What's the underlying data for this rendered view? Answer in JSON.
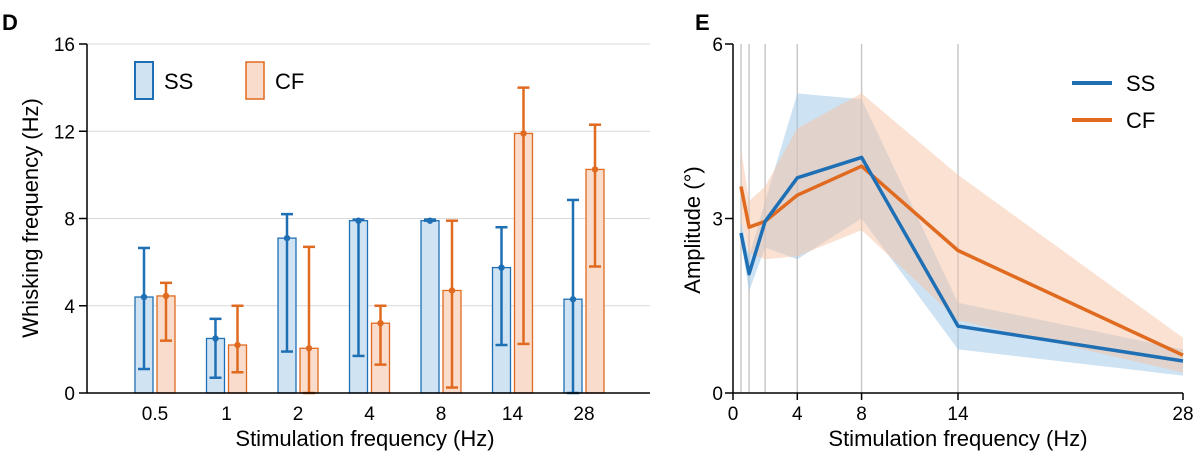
{
  "panels": {
    "d_letter": "D",
    "e_letter": "E"
  },
  "chart_data": [
    {
      "type": "bar",
      "panel": "D",
      "xlabel": "Stimulation frequency (Hz)",
      "ylabel": "Whisking frequency (Hz)",
      "categories": [
        "0.5",
        "1",
        "2",
        "4",
        "8",
        "14",
        "28"
      ],
      "ylim": [
        0,
        16
      ],
      "yticks": [
        0,
        4,
        8,
        12,
        16
      ],
      "grid": "horizontal",
      "legend": "top-left",
      "series": [
        {
          "name": "SS",
          "color": "#1f6fb5",
          "fill": "#cfe3f3",
          "values": [
            4.4,
            2.5,
            7.1,
            7.9,
            7.9,
            5.75,
            4.3
          ],
          "err_low": [
            1.1,
            0.7,
            1.9,
            1.7,
            7.9,
            2.2,
            0.0
          ],
          "err_high": [
            6.65,
            3.4,
            8.2,
            7.95,
            7.95,
            7.6,
            8.85
          ]
        },
        {
          "name": "CF",
          "color": "#e06a1f",
          "fill": "#f9dccb",
          "values": [
            4.45,
            2.2,
            2.05,
            3.2,
            4.7,
            11.9,
            10.25
          ],
          "err_low": [
            2.4,
            0.95,
            0.0,
            1.3,
            0.25,
            2.25,
            5.8
          ],
          "err_high": [
            5.05,
            4.0,
            6.7,
            4.0,
            7.9,
            14.0,
            12.3
          ]
        }
      ]
    },
    {
      "type": "line",
      "panel": "E",
      "xlabel": "Stimulation frequency (Hz)",
      "ylabel": "Amplitude (°)",
      "xlim": [
        0,
        28
      ],
      "ylim": [
        0,
        6
      ],
      "xticks": [
        0,
        4,
        8,
        14,
        28
      ],
      "yticks": [
        0,
        3,
        6
      ],
      "vlines": [
        0.5,
        1,
        2,
        4,
        8,
        14
      ],
      "legend": "top-right",
      "x": [
        0.5,
        1,
        2,
        4,
        8,
        14,
        28
      ],
      "series": [
        {
          "name": "SS",
          "color": "#1f6fb5",
          "band_color": "#9cc6e8",
          "values": [
            2.75,
            2.05,
            2.95,
            3.7,
            4.05,
            1.15,
            0.55
          ],
          "band_low": [
            2.6,
            1.75,
            2.5,
            2.3,
            3.0,
            0.75,
            0.3
          ],
          "band_high": [
            2.95,
            2.35,
            3.3,
            5.15,
            5.05,
            1.55,
            0.75
          ]
        },
        {
          "name": "CF",
          "color": "#e06a1f",
          "band_color": "#f5c3a5",
          "values": [
            3.55,
            2.85,
            2.95,
            3.4,
            3.9,
            2.45,
            0.65
          ],
          "band_low": [
            2.95,
            2.4,
            2.3,
            2.35,
            2.8,
            1.25,
            0.35
          ],
          "band_high": [
            4.2,
            3.3,
            3.55,
            4.55,
            5.15,
            3.75,
            0.95
          ]
        }
      ]
    }
  ]
}
